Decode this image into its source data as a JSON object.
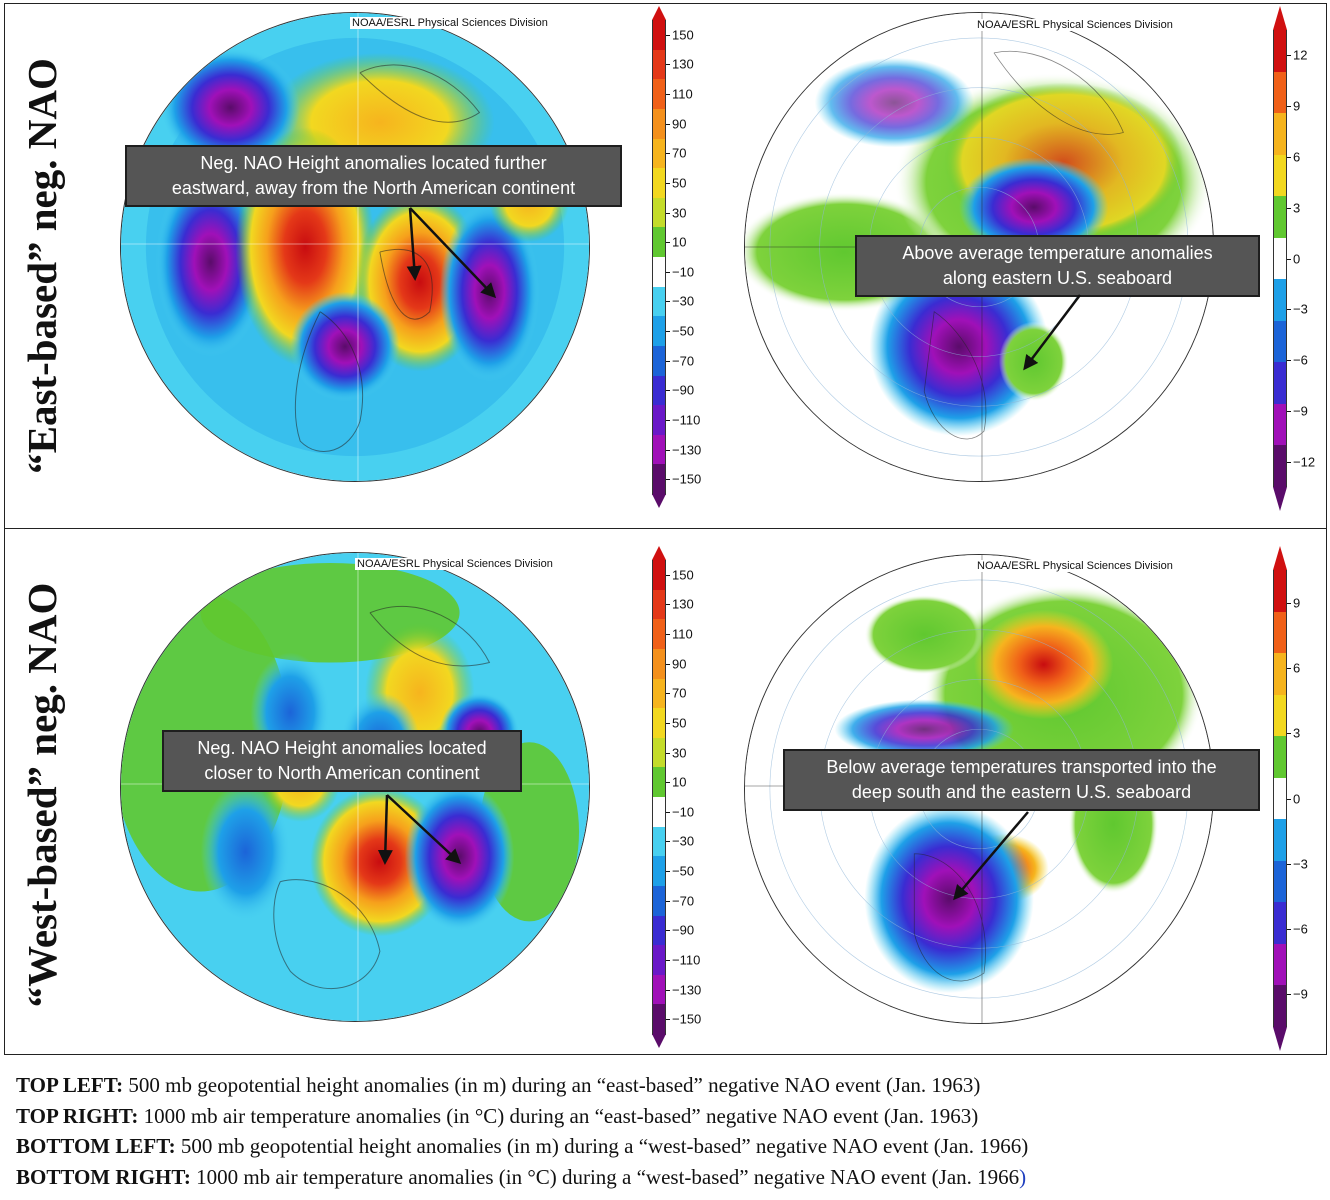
{
  "rows": [
    {
      "label": "“East-based” neg. NAO"
    },
    {
      "label": "“West-based” neg. NAO"
    }
  ],
  "credit": "NOAA/ESRL Physical Sciences Division",
  "callouts": {
    "top_left": [
      "Neg. NAO Height anomalies located further",
      "eastward, away from the North American continent"
    ],
    "top_right": [
      "Above average temperature anomalies",
      "along eastern U.S. seaboard"
    ],
    "bottom_left": [
      "Neg. NAO Height anomalies located",
      "closer to North American continent"
    ],
    "bottom_right": [
      "Below average temperatures transported into the",
      "deep south and the eastern U.S. seaboard"
    ]
  },
  "colorbars": {
    "height": {
      "labels": [
        "150",
        "130",
        "110",
        "90",
        "70",
        "50",
        "30",
        "10",
        "−10",
        "−30",
        "−50",
        "−70",
        "−90",
        "−110",
        "−130",
        "−150"
      ],
      "colors": [
        "#d01010",
        "#e43818",
        "#f06018",
        "#f4901c",
        "#f6b41e",
        "#f2d820",
        "#c4dc2a",
        "#60c830",
        "#ffffff",
        "#48d0f0",
        "#1ea0e8",
        "#1c64d8",
        "#3a2cd2",
        "#6a18c8",
        "#a010b8",
        "#5a0c6a"
      ]
    },
    "temp_top": {
      "labels": [
        "12",
        "9",
        "6",
        "3",
        "0",
        "−3",
        "−6",
        "−9",
        "−12"
      ],
      "colors": [
        "#d01010",
        "#f06018",
        "#f6b41e",
        "#f2d820",
        "#60c830",
        "#ffffff",
        "#1ea0e8",
        "#1c64d8",
        "#3a2cd2",
        "#a010b8",
        "#5a0c6a"
      ]
    },
    "temp_bottom": {
      "labels": [
        "9",
        "6",
        "3",
        "0",
        "−3",
        "−6",
        "−9"
      ],
      "colors": [
        "#d01010",
        "#f06018",
        "#f6b41e",
        "#f2d820",
        "#60c830",
        "#ffffff",
        "#1ea0e8",
        "#1c64d8",
        "#3a2cd2",
        "#a010b8",
        "#5a0c6a"
      ]
    }
  },
  "caption": [
    {
      "lead": "TOP LEFT:",
      "text": " 500 mb geopotential height anomalies (in m) during an “east-based” negative NAO event (Jan. 1963)",
      "tail": ""
    },
    {
      "lead": "TOP RIGHT:",
      "text": " 1000 mb air temperature anomalies (in °C) during an “east-based” negative NAO event (Jan. 1963)",
      "tail": ""
    },
    {
      "lead": "BOTTOM LEFT:",
      "text": "  500 mb geopotential height anomalies (in m) during a “west-based” negative NAO event (Jan. 1966)",
      "tail": ""
    },
    {
      "lead": "BOTTOM RIGHT:",
      "text": " 1000 mb air temperature anomalies (in °C) during a “west-based” negative NAO event (Jan. 1966",
      "tail": ")"
    }
  ]
}
